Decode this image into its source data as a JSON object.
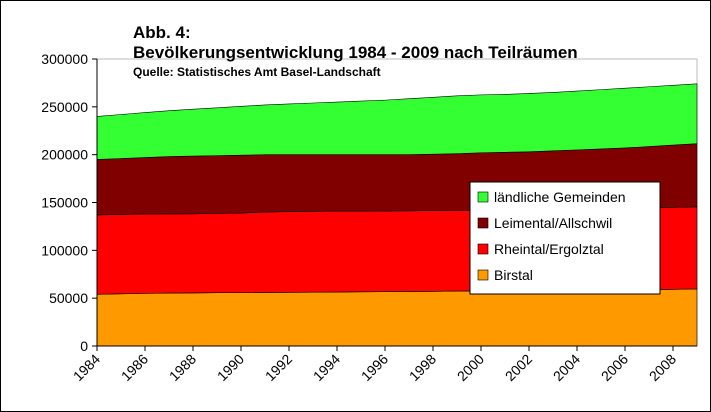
{
  "chart_data": {
    "type": "stacked_area",
    "title": "Abb. 4:",
    "subtitle": "Bevölkerungsentwicklung 1984 - 2009 nach Teilräumen",
    "source": "Quelle: Statistisches Amt Basel-Landschaft",
    "x": [
      1984,
      1985,
      1986,
      1987,
      1988,
      1989,
      1990,
      1991,
      1992,
      1993,
      1994,
      1995,
      1996,
      1997,
      1998,
      1999,
      2000,
      2001,
      2002,
      2003,
      2004,
      2005,
      2006,
      2007,
      2008,
      2009
    ],
    "series": [
      {
        "name": "Birstal",
        "color": "#ff9900",
        "values": [
          54000,
          54500,
          55000,
          55300,
          55500,
          55700,
          55800,
          56000,
          56100,
          56200,
          56400,
          56600,
          56800,
          57000,
          57200,
          57400,
          57600,
          57800,
          58000,
          58200,
          58400,
          58600,
          58800,
          59000,
          59300,
          59600
        ]
      },
      {
        "name": "Rheintal/Ergolztal",
        "color": "#ff0000",
        "values": [
          83000,
          83000,
          83000,
          82700,
          82700,
          82800,
          83200,
          84000,
          84400,
          84600,
          84600,
          84400,
          84400,
          84300,
          84300,
          84400,
          84400,
          84400,
          84500,
          84800,
          84900,
          85000,
          85200,
          85500,
          85700,
          85900
        ]
      },
      {
        "name": "Leimental/Allschwil",
        "color": "#800000",
        "values": [
          58000,
          58500,
          59000,
          60000,
          60300,
          60500,
          60500,
          60000,
          59500,
          59200,
          59000,
          59000,
          58800,
          58700,
          59000,
          59200,
          60000,
          60300,
          60500,
          61000,
          61700,
          62400,
          63000,
          64000,
          65000,
          66000
        ]
      },
      {
        "name": "ländliche Gemeinden",
        "color": "#33ff33",
        "values": [
          45000,
          46000,
          47000,
          48000,
          49000,
          50000,
          51000,
          52000,
          53000,
          54000,
          55000,
          56000,
          57000,
          58500,
          59500,
          60500,
          60500,
          60500,
          61000,
          61000,
          61500,
          62000,
          62500,
          62500,
          62500,
          62500
        ]
      }
    ],
    "xlim": [
      1984,
      2009
    ],
    "xticks": [
      1984,
      1986,
      1988,
      1990,
      1992,
      1994,
      1996,
      1998,
      2000,
      2002,
      2004,
      2006,
      2008
    ],
    "ylim": [
      0,
      300000
    ],
    "yticks": [
      0,
      50000,
      100000,
      150000,
      200000,
      250000,
      300000
    ],
    "legend": "right"
  }
}
